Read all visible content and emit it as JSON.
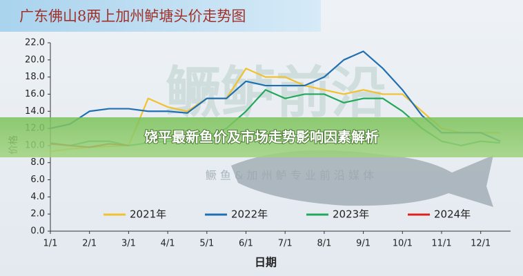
{
  "chart_data": {
    "type": "line",
    "title": "广东佛山8两上加州鲈塘头价走势图",
    "y_label": "价格",
    "x_label": "日期",
    "categories": [
      "1/1",
      null,
      "2/1",
      null,
      "3/1",
      null,
      "4/1",
      null,
      "5/1",
      null,
      "6/1",
      null,
      "7/1",
      null,
      "8/1",
      null,
      "9/1",
      null,
      "10/1",
      null,
      "11/1",
      null,
      "12/1",
      null
    ],
    "series": [
      {
        "name": "2021年",
        "color": "#f2c12e",
        "values": [
          9.3,
          9.6,
          9.8,
          9.9,
          10,
          15.5,
          14.5,
          14,
          15.5,
          15.5,
          19,
          18,
          18,
          17,
          16.5,
          16,
          16.5,
          16,
          16,
          14,
          12,
          11.5,
          11.5,
          11.5
        ]
      },
      {
        "name": "2022年",
        "color": "#1f6fb2",
        "values": [
          12,
          12.5,
          14,
          14.3,
          14.3,
          14,
          14,
          13.8,
          15.5,
          15.5,
          17.5,
          17,
          17,
          17,
          18,
          20,
          21,
          19,
          16.5,
          13.5,
          11.5,
          11.5,
          11.5,
          10.5
        ]
      },
      {
        "name": "2023年",
        "color": "#22a85a",
        "values": [
          10.3,
          10,
          10.5,
          10.5,
          10,
          10.3,
          10.5,
          10.5,
          11,
          12,
          14,
          16.5,
          15.5,
          16,
          16,
          15,
          15.5,
          15.5,
          14,
          12,
          10.5,
          10,
          10.5,
          10.3
        ]
      },
      {
        "name": "2024年",
        "color": "#e02020",
        "values": [
          10.2,
          10,
          9.8,
          10.2,
          10,
          null,
          null,
          null,
          null,
          null,
          null,
          null,
          null,
          null,
          null,
          null,
          null,
          null,
          null,
          null,
          null,
          null,
          null,
          null
        ]
      }
    ],
    "ylim": [
      0,
      22
    ],
    "yticks": [
      {
        "value": 0,
        "label": "0.0"
      },
      {
        "value": 2,
        "label": "2.0"
      },
      {
        "value": 4,
        "label": "4.0"
      },
      {
        "value": 6,
        "label": "6.0"
      },
      {
        "value": 8,
        "label": "8.0"
      },
      {
        "value": 10,
        "label": "10.0"
      },
      {
        "value": 12,
        "label": "12.0"
      },
      {
        "value": 14,
        "label": "14.0"
      },
      {
        "value": 16,
        "label": "16.0"
      },
      {
        "value": 18,
        "label": "18.0"
      },
      {
        "value": 20,
        "label": "20.0"
      },
      {
        "value": 22,
        "label": "22.0"
      }
    ],
    "grid": false,
    "legend": "bottom",
    "watermark": [
      "鳜鲈前沿",
      "鳜 鱼 & 加 州 鲈 专 业 前 沿 媒 体"
    ]
  },
  "banner": "饶平最新鱼价及市场走势影响因素解析"
}
